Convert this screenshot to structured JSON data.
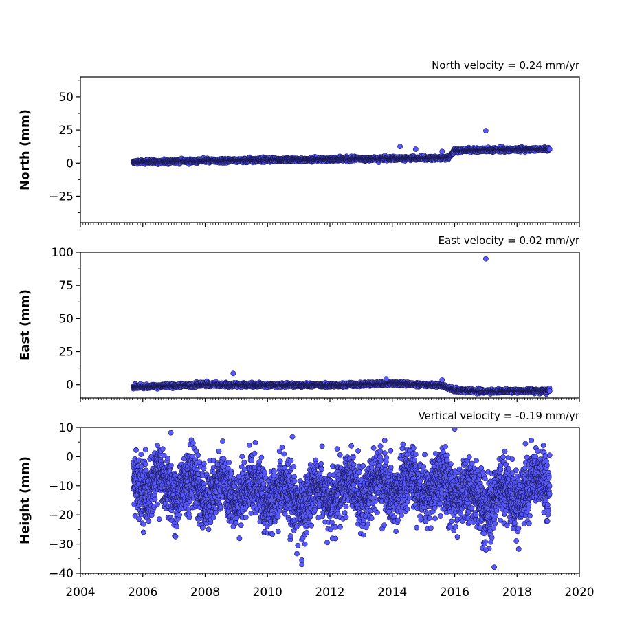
{
  "chart_data": {
    "type": "scatter",
    "x_axis": {
      "range": [
        2004,
        2020
      ],
      "ticks": [
        "2004",
        "2006",
        "2008",
        "2010",
        "2012",
        "2014",
        "2016",
        "2018",
        "2020"
      ],
      "minor_ticks_per_year": 12
    },
    "marker": {
      "fill": "#5858ff",
      "edge": "#1a1a55"
    },
    "panels": [
      {
        "id": "north",
        "ylabel": "North (mm)",
        "velocity_label": "North velocity = 0.24 mm/yr",
        "ylim": [
          -45,
          65
        ],
        "yticks": [
          "50",
          "25",
          "0",
          "−25"
        ],
        "ytick_values": [
          50,
          25,
          0,
          -25
        ],
        "trend": [
          [
            2005.7,
            0.8
          ],
          [
            2010,
            2.5
          ],
          [
            2014,
            3.5
          ],
          [
            2015.8,
            4
          ],
          [
            2016,
            9.5
          ],
          [
            2017,
            10
          ],
          [
            2019,
            10.5
          ]
        ],
        "noise": 1.0,
        "outliers": [
          [
            2017.0,
            24.5
          ],
          [
            2014.25,
            12.5
          ],
          [
            2014.75,
            10.5
          ],
          [
            2015.6,
            8.8
          ]
        ],
        "start": 2005.7,
        "end": 2019.05
      },
      {
        "id": "east",
        "ylabel": "East (mm)",
        "velocity_label": "East velocity = 0.02 mm/yr",
        "ylim": [
          -10,
          100
        ],
        "yticks": [
          "100",
          "75",
          "50",
          "25",
          "0"
        ],
        "ytick_values": [
          100,
          75,
          50,
          25,
          0
        ],
        "trend": [
          [
            2005.7,
            -1.5
          ],
          [
            2008,
            0
          ],
          [
            2012,
            -0.5
          ],
          [
            2014,
            1
          ],
          [
            2015.6,
            -0.5
          ],
          [
            2016,
            -4
          ],
          [
            2017,
            -5
          ],
          [
            2019,
            -4.5
          ]
        ],
        "noise": 1.0,
        "outliers": [
          [
            2017.0,
            95
          ],
          [
            2008.9,
            8.5
          ],
          [
            2015.6,
            3.5
          ],
          [
            2013.8,
            4.5
          ]
        ],
        "start": 2005.7,
        "end": 2019.05
      },
      {
        "id": "height",
        "ylabel": "Height (mm)",
        "velocity_label": "Vertical velocity = -0.19 mm/yr",
        "ylim": [
          -40,
          10
        ],
        "yticks": [
          "10",
          "0",
          "−10",
          "−20",
          "−30",
          "−40"
        ],
        "ytick_values": [
          10,
          0,
          -10,
          -20,
          -30,
          -40
        ],
        "trend": [
          [
            2005.7,
            -9
          ],
          [
            2011,
            -14
          ],
          [
            2014,
            -10
          ],
          [
            2016,
            -10
          ],
          [
            2017,
            -16
          ],
          [
            2019,
            -8
          ]
        ],
        "noise": 5.0,
        "outliers": [
          [
            2011.1,
            -37
          ],
          [
            2011.1,
            -35.5
          ],
          [
            2011.2,
            -30
          ],
          [
            2016.0,
            9.5
          ],
          [
            2017.0,
            -32
          ],
          [
            2006.9,
            8.2
          ],
          [
            2010.8,
            6.8
          ]
        ],
        "start": 2005.7,
        "end": 2019.05
      }
    ]
  }
}
